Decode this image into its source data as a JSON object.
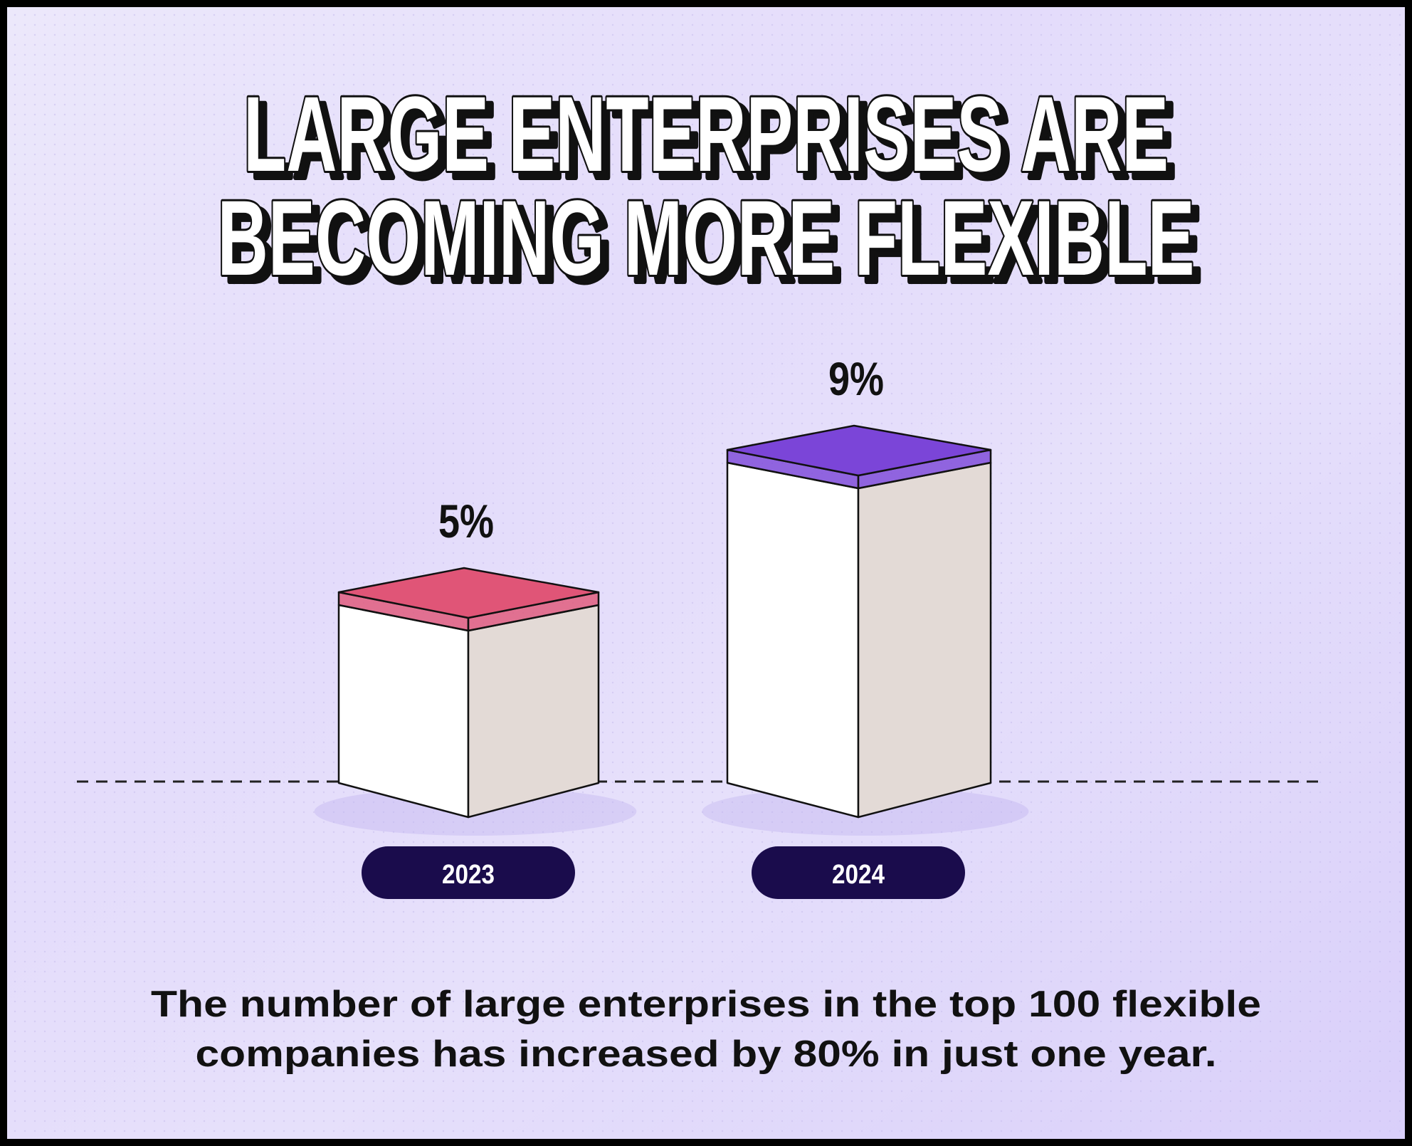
{
  "chart_data": {
    "type": "bar3d",
    "title": [
      "LARGE ENTERPRISES ARE",
      "BECOMING MORE FLEXIBLE"
    ],
    "caption": [
      "The number of large enterprises in the top 100 flexible",
      "companies has increased by 80% in just one year."
    ],
    "categories": [
      "2023",
      "2024"
    ],
    "values": [
      5,
      9
    ],
    "value_labels": [
      "5%",
      "9%"
    ],
    "colors": [
      "#e05577",
      "#7b45d8"
    ],
    "ylim": [
      0,
      10
    ]
  }
}
